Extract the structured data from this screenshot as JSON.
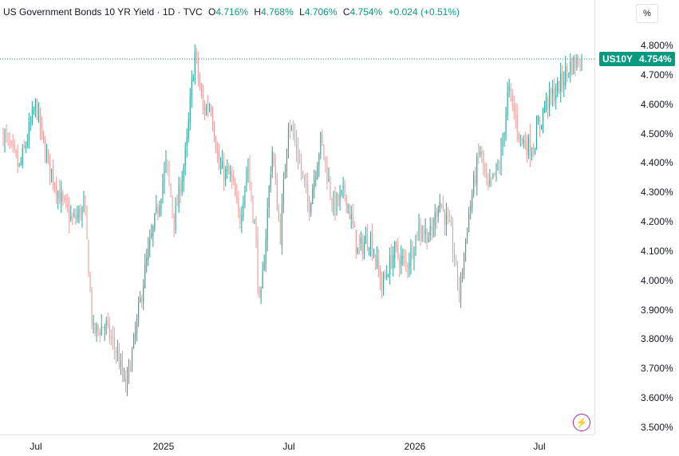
{
  "header": {
    "title": "US Government Bonds 10 YR Yield · 1D · TVC",
    "open_label": "O",
    "open": "4.716%",
    "high_label": "H",
    "high": "4.768%",
    "low_label": "L",
    "low": "4.706%",
    "close_label": "C",
    "close": "4.754%",
    "change": "+0.024 (+0.51%)"
  },
  "unit_button": "%",
  "last_price": {
    "symbol": "US10Y",
    "value": "4.754%"
  },
  "colors": {
    "up": "#089981",
    "down": "#f23645",
    "up_wick": "#26a69a",
    "down_wick": "#ef9a9a",
    "accent": "#089981"
  },
  "icons": {
    "bottom": "flash-icon"
  },
  "chart_data": {
    "type": "candlestick",
    "y_unit": "%",
    "ylim": [
      3.48,
      4.86
    ],
    "y_ticks": [
      "4.800%",
      "4.700%",
      "4.600%",
      "4.500%",
      "4.400%",
      "4.300%",
      "4.200%",
      "4.100%",
      "4.000%",
      "3.900%",
      "3.800%",
      "3.700%",
      "3.600%",
      "3.500%"
    ],
    "x_ticks": [
      "Jul",
      "2025",
      "Jul",
      "2026",
      "Jul"
    ],
    "grid": false,
    "last_close": 4.754,
    "close_path": [
      [
        0,
        4.5
      ],
      [
        4,
        4.38
      ],
      [
        8,
        4.6
      ],
      [
        10,
        4.45
      ],
      [
        14,
        4.28
      ],
      [
        17,
        4.2
      ],
      [
        20,
        4.25
      ],
      [
        22,
        3.82
      ],
      [
        25,
        3.85
      ],
      [
        28,
        3.75
      ],
      [
        30,
        3.63
      ],
      [
        32,
        3.78
      ],
      [
        35,
        4.05
      ],
      [
        38,
        4.25
      ],
      [
        40,
        4.4
      ],
      [
        42,
        4.2
      ],
      [
        45,
        4.45
      ],
      [
        47,
        4.78
      ],
      [
        49,
        4.58
      ],
      [
        51,
        4.6
      ],
      [
        53,
        4.38
      ],
      [
        56,
        4.35
      ],
      [
        58,
        4.2
      ],
      [
        60,
        4.4
      ],
      [
        62,
        4.15
      ],
      [
        63,
        3.88
      ],
      [
        66,
        4.45
      ],
      [
        68,
        4.15
      ],
      [
        70,
        4.55
      ],
      [
        72,
        4.45
      ],
      [
        75,
        4.25
      ],
      [
        78,
        4.48
      ],
      [
        81,
        4.25
      ],
      [
        84,
        4.3
      ],
      [
        87,
        4.1
      ],
      [
        90,
        4.15
      ],
      [
        93,
        3.98
      ],
      [
        96,
        4.1
      ],
      [
        99,
        4.05
      ],
      [
        102,
        4.18
      ],
      [
        105,
        4.15
      ],
      [
        107,
        4.28
      ],
      [
        110,
        4.15
      ],
      [
        112,
        3.95
      ],
      [
        114,
        4.2
      ],
      [
        117,
        4.45
      ],
      [
        119,
        4.3
      ],
      [
        122,
        4.4
      ],
      [
        124,
        4.65
      ],
      [
        127,
        4.48
      ],
      [
        130,
        4.45
      ],
      [
        133,
        4.6
      ],
      [
        136,
        4.65
      ],
      [
        139,
        4.73
      ],
      [
        142,
        4.754
      ]
    ]
  }
}
